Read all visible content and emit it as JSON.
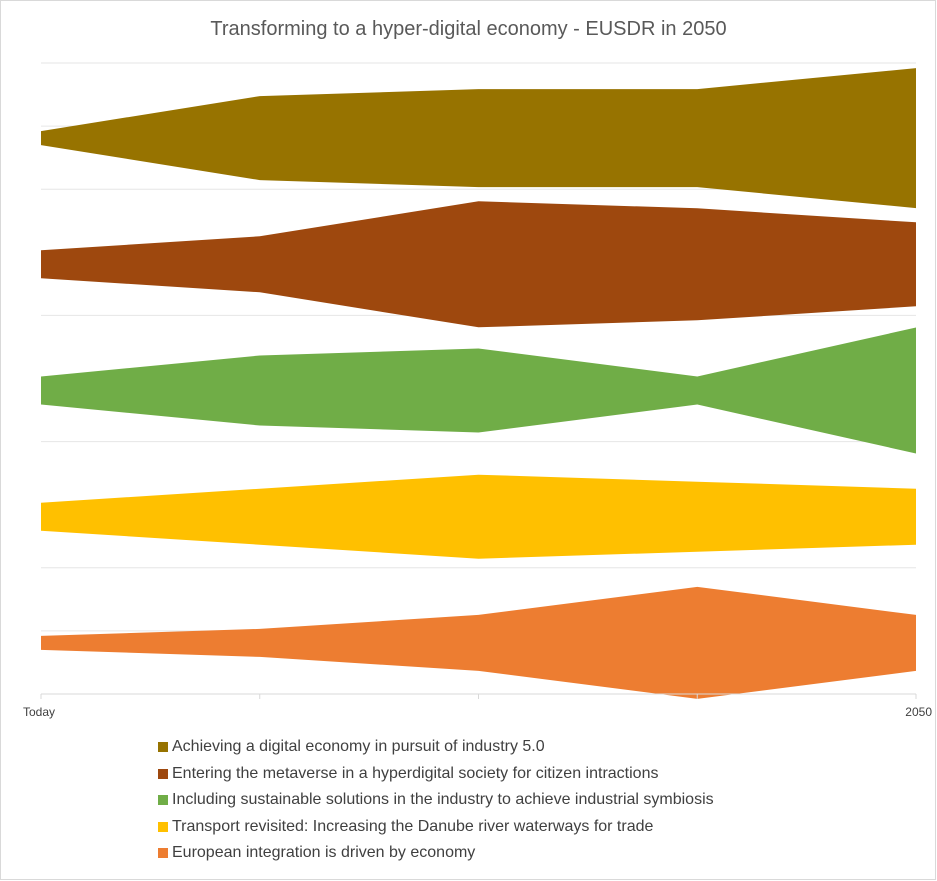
{
  "chart_data": {
    "type": "area",
    "title": "Transforming to a hyper-digital economy - EUSDR in 2050",
    "x_ticks": [
      "Today",
      "",
      "",
      "",
      "2050"
    ],
    "grid": true,
    "legend_position": "bottom",
    "series": [
      {
        "name": "Achieving a digital economy in pursuit of industry 5.0",
        "color": "#977300",
        "values": [
          4,
          24,
          28,
          28,
          40
        ]
      },
      {
        "name": "Entering the metaverse in a hyperdigital society for citizen intractions",
        "color": "#9e480e",
        "values": [
          8,
          16,
          36,
          32,
          24
        ]
      },
      {
        "name": "Including sustainable solutions in the industry to achieve industrial symbiosis",
        "color": "#70ad47",
        "values": [
          8,
          20,
          24,
          8,
          36
        ]
      },
      {
        "name": "Transport revisited: Increasing the Danube river waterways for trade",
        "color": "#ffc000",
        "values": [
          8,
          16,
          24,
          20,
          16
        ]
      },
      {
        "name": "European integration is driven by economy",
        "color": "#ed7d31",
        "values": [
          4,
          8,
          16,
          32,
          16
        ]
      }
    ]
  }
}
